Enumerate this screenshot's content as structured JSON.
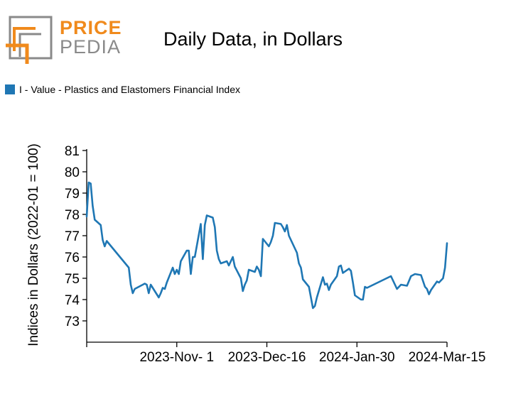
{
  "logo": {
    "line1": "PRICE",
    "line2": "PEDIA"
  },
  "colors": {
    "series": "#1f77b4",
    "logo_orange": "#f08a1c",
    "logo_gray": "#8a8a8a"
  },
  "chart_data": {
    "type": "line",
    "title": "Daily Data, in Dollars",
    "ylabel": "Indices in Dollars (2022-01 = 100)",
    "xlabel": "",
    "ylim": [
      72,
      81
    ],
    "yticks": [
      73,
      74,
      75,
      76,
      77,
      78,
      79,
      80,
      81
    ],
    "xlim": [
      "2023-09-17",
      "2024-03-15"
    ],
    "xticks": [
      {
        "label": "2023-Nov- 1",
        "date": "2023-11-01"
      },
      {
        "label": "2023-Dec-16",
        "date": "2023-12-16"
      },
      {
        "label": "2024-Jan-30",
        "date": "2024-01-30"
      },
      {
        "label": "2024-Mar-15",
        "date": "2024-03-15"
      }
    ],
    "grid": false,
    "legend_position": "top-left",
    "series": [
      {
        "name": "I - Value - Plastics and Elastomers Financial Index",
        "points": [
          [
            "2023-09-17",
            77.9
          ],
          [
            "2023-09-18",
            79.5
          ],
          [
            "2023-09-19",
            79.45
          ],
          [
            "2023-09-20",
            78.4
          ],
          [
            "2023-09-21",
            77.75
          ],
          [
            "2023-09-24",
            77.5
          ],
          [
            "2023-09-25",
            76.8
          ],
          [
            "2023-09-26",
            76.5
          ],
          [
            "2023-09-27",
            76.75
          ],
          [
            "2023-10-08",
            75.5
          ],
          [
            "2023-10-09",
            74.7
          ],
          [
            "2023-10-10",
            74.3
          ],
          [
            "2023-10-11",
            74.5
          ],
          [
            "2023-10-15",
            74.7
          ],
          [
            "2023-10-16",
            74.75
          ],
          [
            "2023-10-17",
            74.7
          ],
          [
            "2023-10-18",
            74.3
          ],
          [
            "2023-10-19",
            74.7
          ],
          [
            "2023-10-23",
            74.1
          ],
          [
            "2023-10-24",
            74.3
          ],
          [
            "2023-10-25",
            74.55
          ],
          [
            "2023-10-26",
            74.5
          ],
          [
            "2023-10-27",
            74.8
          ],
          [
            "2023-10-30",
            75.5
          ],
          [
            "2023-10-31",
            75.2
          ],
          [
            "2023-11-01",
            75.4
          ],
          [
            "2023-11-02",
            75.2
          ],
          [
            "2023-11-03",
            75.8
          ],
          [
            "2023-11-06",
            76.3
          ],
          [
            "2023-11-07",
            76.3
          ],
          [
            "2023-11-08",
            75.2
          ],
          [
            "2023-11-09",
            76.0
          ],
          [
            "2023-11-10",
            76.0
          ],
          [
            "2023-11-13",
            77.55
          ],
          [
            "2023-11-14",
            75.9
          ],
          [
            "2023-11-15",
            77.5
          ],
          [
            "2023-11-16",
            77.95
          ],
          [
            "2023-11-19",
            77.85
          ],
          [
            "2023-11-20",
            77.4
          ],
          [
            "2023-11-21",
            76.3
          ],
          [
            "2023-11-22",
            75.9
          ],
          [
            "2023-11-23",
            75.7
          ],
          [
            "2023-11-26",
            75.8
          ],
          [
            "2023-11-27",
            75.6
          ],
          [
            "2023-11-28",
            75.8
          ],
          [
            "2023-11-29",
            76.0
          ],
          [
            "2023-11-30",
            75.55
          ],
          [
            "2023-12-03",
            75.0
          ],
          [
            "2023-12-04",
            74.4
          ],
          [
            "2023-12-05",
            74.7
          ],
          [
            "2023-12-06",
            74.9
          ],
          [
            "2023-12-07",
            75.4
          ],
          [
            "2023-12-10",
            75.3
          ],
          [
            "2023-12-11",
            75.55
          ],
          [
            "2023-12-12",
            75.4
          ],
          [
            "2023-12-13",
            75.1
          ],
          [
            "2023-12-14",
            76.85
          ],
          [
            "2023-12-17",
            76.5
          ],
          [
            "2023-12-18",
            76.7
          ],
          [
            "2023-12-19",
            77.0
          ],
          [
            "2023-12-20",
            77.6
          ],
          [
            "2023-12-23",
            77.55
          ],
          [
            "2023-12-24",
            77.4
          ],
          [
            "2023-12-25",
            77.2
          ],
          [
            "2023-12-26",
            77.5
          ],
          [
            "2023-12-27",
            77.0
          ],
          [
            "2023-12-31",
            76.2
          ],
          [
            "2024-01-01",
            75.7
          ],
          [
            "2024-01-02",
            75.5
          ],
          [
            "2024-01-03",
            74.95
          ],
          [
            "2024-01-06",
            74.6
          ],
          [
            "2024-01-07",
            74.1
          ],
          [
            "2024-01-08",
            73.6
          ],
          [
            "2024-01-09",
            73.7
          ],
          [
            "2024-01-10",
            74.1
          ],
          [
            "2024-01-13",
            75.05
          ],
          [
            "2024-01-14",
            74.7
          ],
          [
            "2024-01-15",
            74.75
          ],
          [
            "2024-01-16",
            74.45
          ],
          [
            "2024-01-17",
            74.7
          ],
          [
            "2024-01-20",
            75.1
          ],
          [
            "2024-01-21",
            75.55
          ],
          [
            "2024-01-22",
            75.6
          ],
          [
            "2024-01-23",
            75.25
          ],
          [
            "2024-01-26",
            75.45
          ],
          [
            "2024-01-27",
            75.35
          ],
          [
            "2024-01-28",
            74.8
          ],
          [
            "2024-01-29",
            74.2
          ],
          [
            "2024-02-01",
            74.0
          ],
          [
            "2024-02-02",
            74.0
          ],
          [
            "2024-02-03",
            74.6
          ],
          [
            "2024-02-04",
            74.55
          ],
          [
            "2024-02-16",
            75.1
          ],
          [
            "2024-02-19",
            74.5
          ],
          [
            "2024-02-20",
            74.6
          ],
          [
            "2024-02-21",
            74.7
          ],
          [
            "2024-02-24",
            74.65
          ],
          [
            "2024-02-26",
            75.1
          ],
          [
            "2024-02-27",
            75.15
          ],
          [
            "2024-02-28",
            75.2
          ],
          [
            "2024-03-02",
            75.15
          ],
          [
            "2024-03-04",
            74.6
          ],
          [
            "2024-03-05",
            74.5
          ],
          [
            "2024-03-06",
            74.25
          ],
          [
            "2024-03-07",
            74.45
          ],
          [
            "2024-03-10",
            74.85
          ],
          [
            "2024-03-11",
            74.8
          ],
          [
            "2024-03-12",
            74.9
          ],
          [
            "2024-03-13",
            75.0
          ],
          [
            "2024-03-14",
            75.5
          ],
          [
            "2024-03-15",
            76.65
          ]
        ]
      }
    ]
  }
}
